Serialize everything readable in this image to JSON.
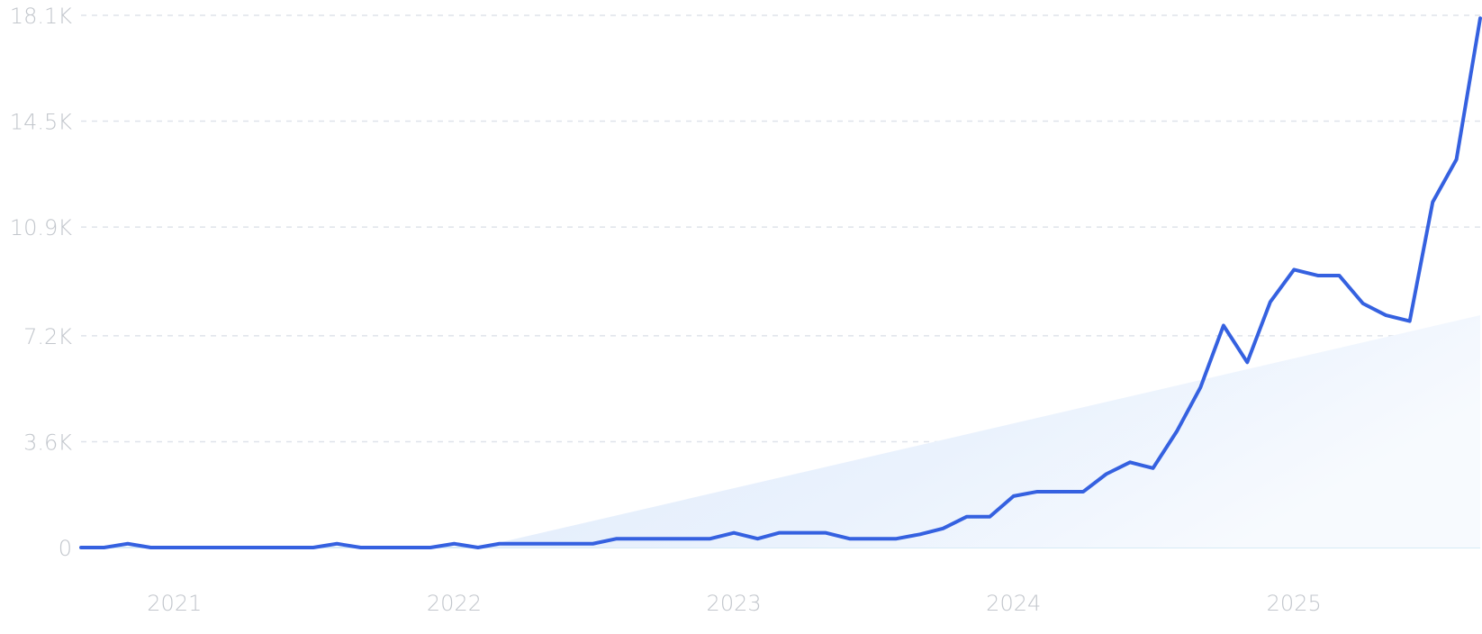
{
  "colors": {
    "line": "#3561e0",
    "trend_fill": "#e8f1fc",
    "grid": "#dfe3ea",
    "axis_text": "#c2c6cc"
  },
  "chart_data": {
    "type": "line",
    "y_ticks": [
      {
        "value": 0,
        "label": "0"
      },
      {
        "value": 3600,
        "label": "3.6K"
      },
      {
        "value": 7200,
        "label": "7.2K"
      },
      {
        "value": 10900,
        "label": "10.9K"
      },
      {
        "value": 14500,
        "label": "14.5K"
      },
      {
        "value": 18100,
        "label": "18.1K"
      }
    ],
    "x_ticks": [
      {
        "value": "2021-01-01",
        "label": "2021"
      },
      {
        "value": "2022-01-01",
        "label": "2022"
      },
      {
        "value": "2023-01-01",
        "label": "2023"
      },
      {
        "value": "2024-01-01",
        "label": "2024"
      },
      {
        "value": "2025-01-01",
        "label": "2025"
      }
    ],
    "ylim": [
      0,
      18100
    ],
    "xlim": [
      "2020-09-01",
      "2025-09-01"
    ],
    "grid": true,
    "series": [
      {
        "x": [
          "2020-09-01",
          "2020-10-01",
          "2020-11-01",
          "2020-12-01",
          "2021-01-01",
          "2021-02-01",
          "2021-03-01",
          "2021-04-01",
          "2021-05-01",
          "2021-06-01",
          "2021-07-01",
          "2021-08-01",
          "2021-09-01",
          "2021-10-01",
          "2021-11-01",
          "2021-12-01",
          "2022-01-01",
          "2022-02-01",
          "2022-03-01",
          "2022-04-01",
          "2022-05-01",
          "2022-06-01",
          "2022-07-01",
          "2022-08-01",
          "2022-09-01",
          "2022-10-01",
          "2022-11-01",
          "2022-12-01",
          "2023-01-01",
          "2023-02-01",
          "2023-03-01",
          "2023-04-01",
          "2023-05-01",
          "2023-06-01",
          "2023-07-01",
          "2023-08-01",
          "2023-09-01",
          "2023-10-01",
          "2023-11-01",
          "2023-12-01",
          "2024-01-01",
          "2024-02-01",
          "2024-03-01",
          "2024-04-01",
          "2024-05-01",
          "2024-06-01",
          "2024-07-01",
          "2024-08-01",
          "2024-09-01",
          "2024-10-01",
          "2024-11-01",
          "2024-12-01",
          "2025-01-01",
          "2025-02-01",
          "2025-03-01",
          "2025-04-01",
          "2025-05-01",
          "2025-06-01",
          "2025-07-01",
          "2025-08-01",
          "2025-09-01"
        ],
        "values": [
          0,
          0,
          130,
          0,
          0,
          0,
          0,
          0,
          0,
          0,
          0,
          130,
          0,
          0,
          0,
          0,
          130,
          0,
          130,
          130,
          130,
          130,
          130,
          300,
          300,
          300,
          300,
          300,
          500,
          300,
          500,
          500,
          500,
          300,
          300,
          300,
          450,
          650,
          1050,
          1050,
          1750,
          1900,
          1900,
          1900,
          2500,
          2900,
          2700,
          3950,
          5450,
          7550,
          6300,
          8350,
          9450,
          9250,
          9250,
          8300,
          7900,
          7700,
          11750,
          13200,
          18000
        ]
      }
    ],
    "trend": {
      "start": [
        "2022-02-01",
        0
      ],
      "end": [
        "2025-09-01",
        7900
      ]
    }
  }
}
